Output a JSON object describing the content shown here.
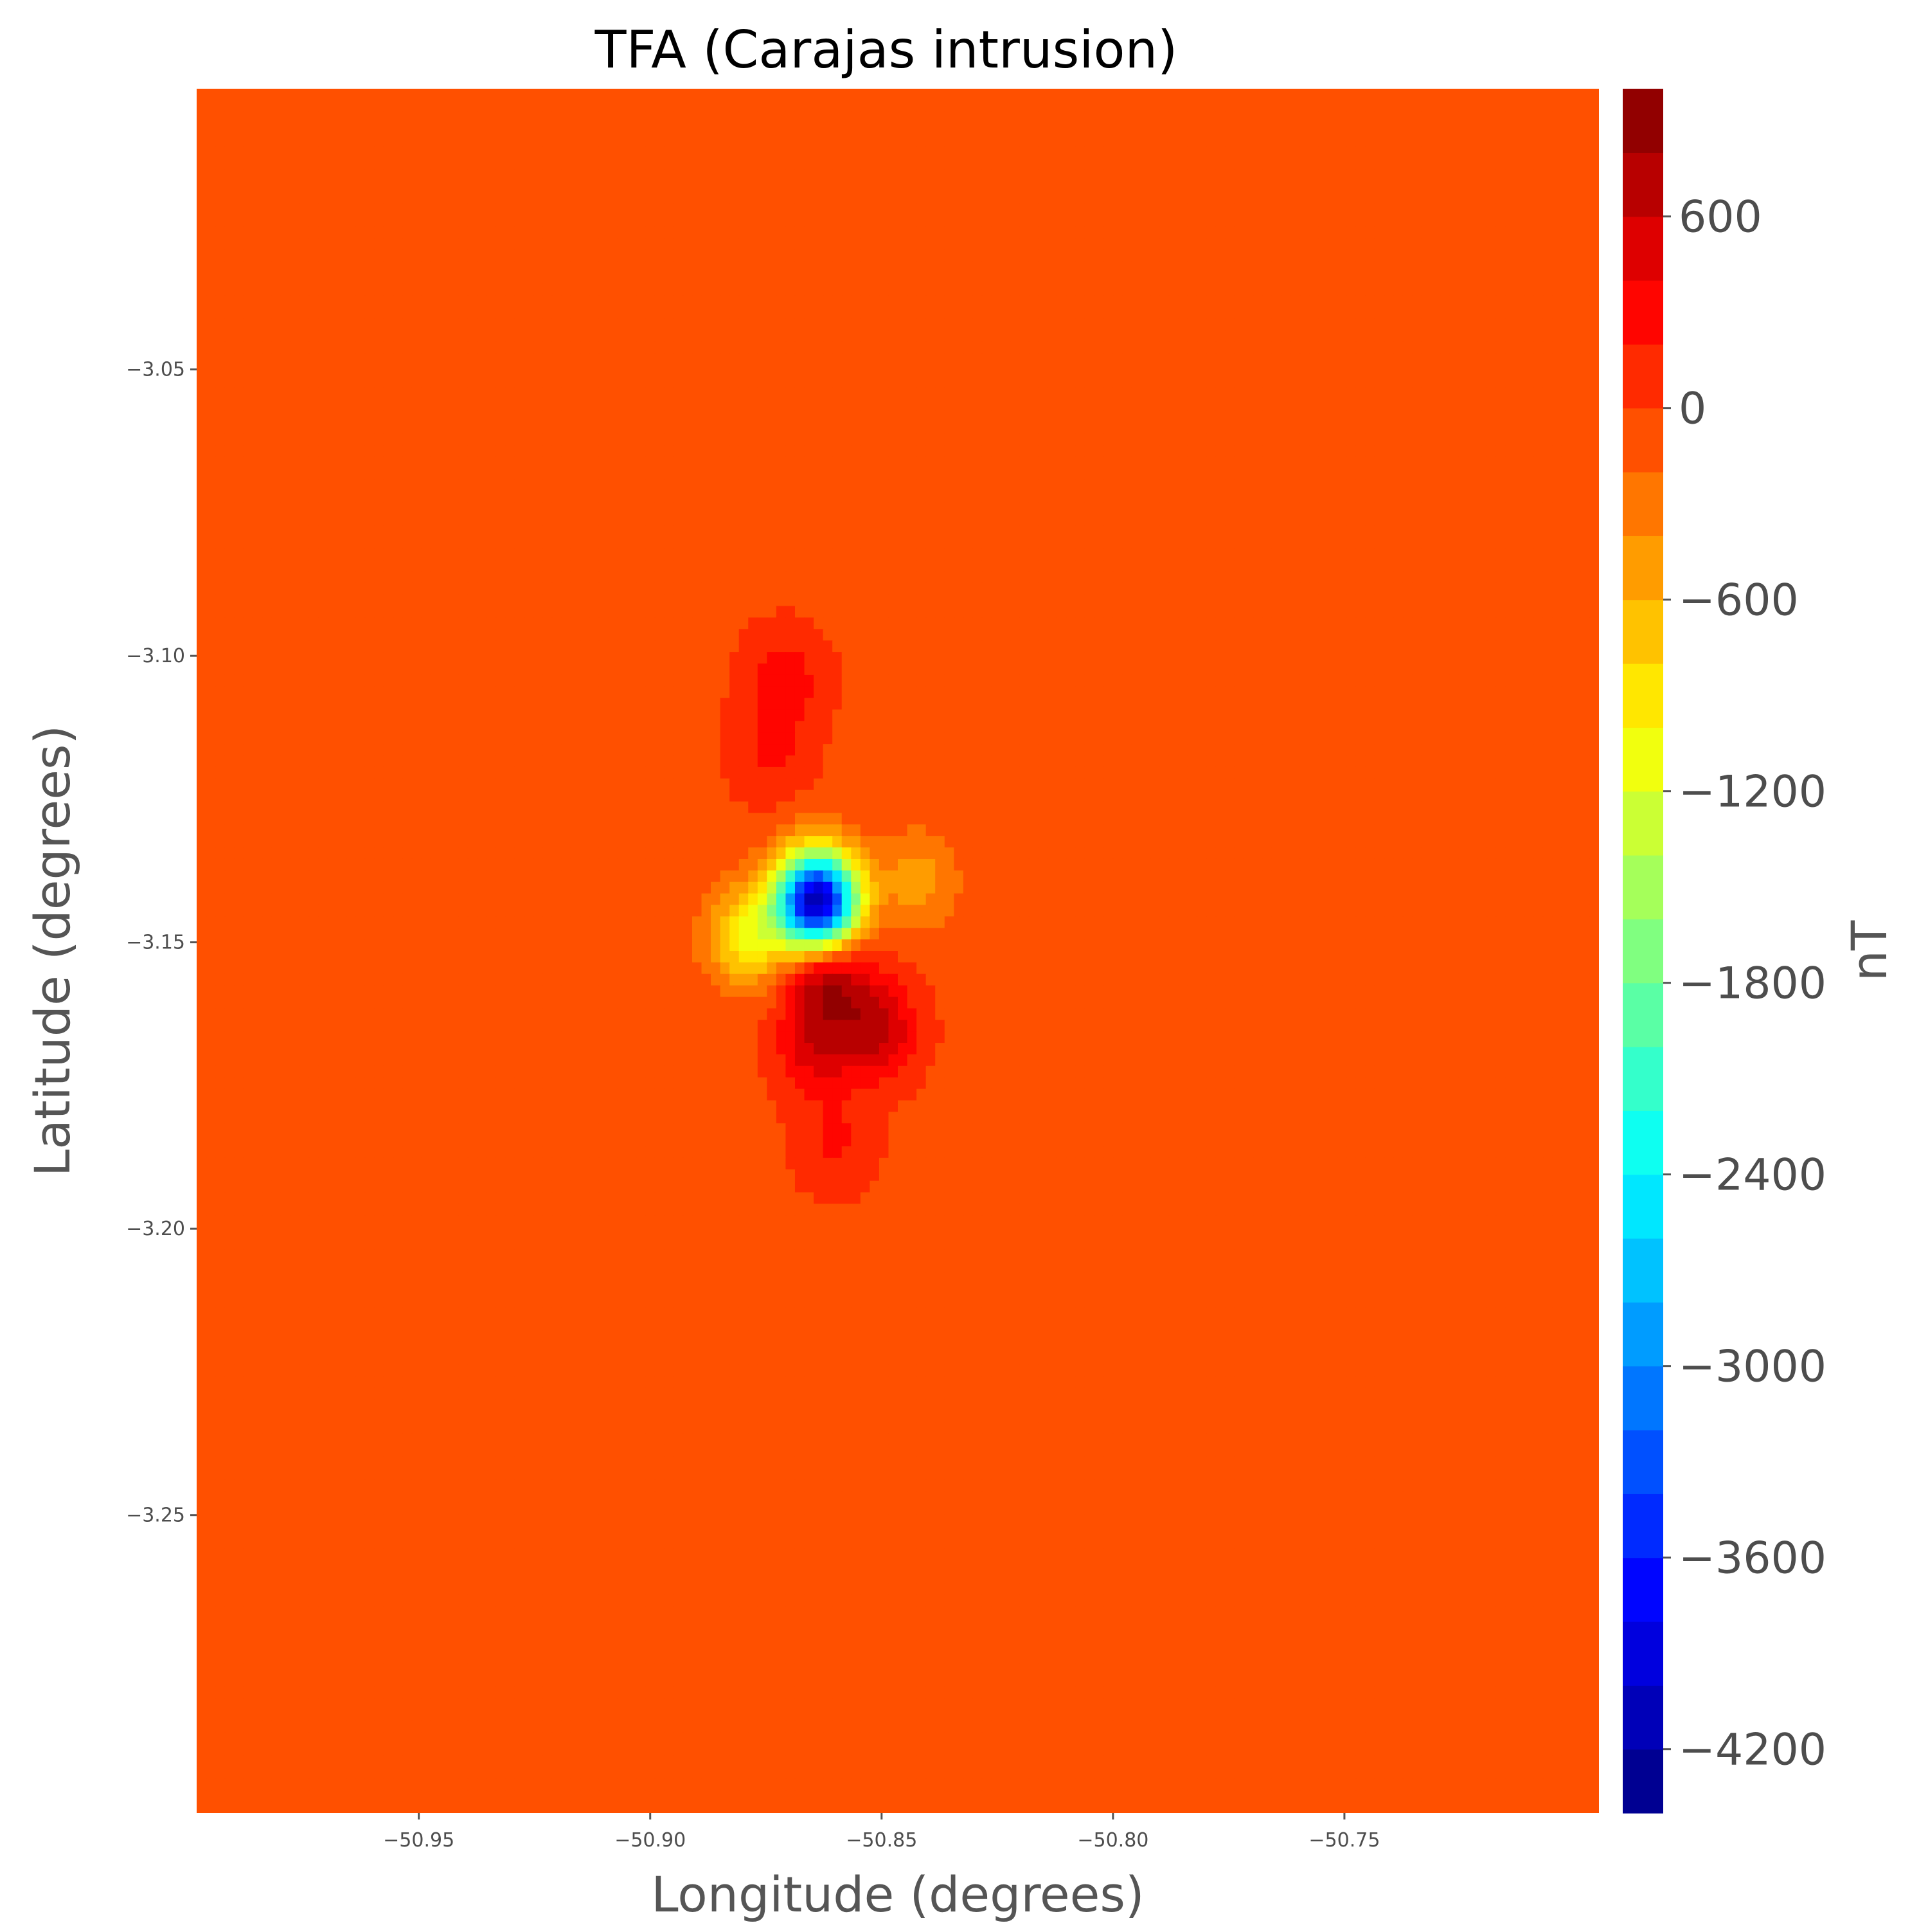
{
  "chart_data": {
    "type": "heatmap",
    "title": "TFA (Carajas intrusion)",
    "xlabel": "Longitude (degrees)",
    "ylabel": "Latitude (degrees)",
    "xlim": [
      -50.998,
      -50.695
    ],
    "ylim": [
      -3.302,
      -3.001
    ],
    "xticks": [
      -50.95,
      -50.9,
      -50.85,
      -50.8,
      -50.75
    ],
    "xtick_labels": [
      "−50.95",
      "−50.90",
      "−50.85",
      "−50.80",
      "−50.75"
    ],
    "yticks": [
      -3.05,
      -3.1,
      -3.15,
      -3.2,
      -3.25
    ],
    "ytick_labels": [
      "−3.05",
      "−3.10",
      "−3.15",
      "−3.20",
      "−3.25"
    ],
    "colormap": "jet",
    "background_value": -50,
    "colorbar": {
      "label": "nT",
      "vmin": -4400,
      "vmax": 1000,
      "levels": 27,
      "ticks": [
        600,
        0,
        -600,
        -1200,
        -1800,
        -2400,
        -3000,
        -3600,
        -4200
      ],
      "tick_labels": [
        "600",
        "0",
        "−600",
        "−1200",
        "−1800",
        "−2400",
        "−3000",
        "−3600",
        "−4200"
      ]
    },
    "anomalies": [
      {
        "lon": -50.864,
        "lat": -3.143,
        "value": -4300
      },
      {
        "lon": -50.879,
        "lat": -3.149,
        "value": -1000
      },
      {
        "lon": -50.842,
        "lat": -3.139,
        "value": -500
      },
      {
        "lon": -50.862,
        "lat": -3.155,
        "value": 900
      },
      {
        "lon": -50.851,
        "lat": -3.165,
        "value": 650
      },
      {
        "lon": -50.864,
        "lat": -3.168,
        "value": 500
      },
      {
        "lon": -50.871,
        "lat": -3.104,
        "value": 320
      },
      {
        "lon": -50.874,
        "lat": -3.117,
        "value": 220
      },
      {
        "lon": -50.86,
        "lat": -3.185,
        "value": 220
      },
      {
        "lon": -50.76,
        "lat": -3.075,
        "value": -200
      },
      {
        "lon": -50.945,
        "lat": -3.17,
        "value": -200
      },
      {
        "lon": -50.78,
        "lat": -3.255,
        "value": -200
      },
      {
        "lon": -50.77,
        "lat": -3.183,
        "value": -200
      },
      {
        "lon": -50.945,
        "lat": -3.06,
        "value": -200
      },
      {
        "lon": -50.99,
        "lat": -3.045,
        "value": -180
      }
    ]
  }
}
